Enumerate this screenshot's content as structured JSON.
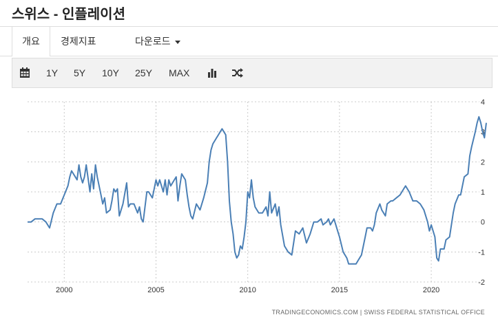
{
  "page_title": "스위스 - 인플레이션",
  "tabs": {
    "overview": "개요",
    "indicators": "경제지표",
    "download": "다운로드"
  },
  "toolbar": {
    "r1": "1Y",
    "r5": "5Y",
    "r10": "10Y",
    "r25": "25Y",
    "rmax": "MAX"
  },
  "source": "TRADINGECONOMICS.COM  |  SWISS FEDERAL STATISTICAL OFFICE",
  "colors": {
    "line": "#4a7fb5",
    "grid": "#c8c8c8"
  },
  "chart_data": {
    "type": "line",
    "x_ticks": [
      "2000",
      "2005",
      "2010",
      "2015",
      "2020"
    ],
    "y_ticks": [
      "4",
      "3",
      "2",
      "1",
      "0",
      "-1",
      "-2"
    ],
    "ylim": [
      -2,
      4
    ],
    "xlim": [
      1998.0,
      2023.0
    ],
    "grid": "horizontal dashed",
    "series": [
      {
        "points": [
          [
            1998.0,
            0.0
          ],
          [
            1998.2,
            0.0
          ],
          [
            1998.4,
            0.1
          ],
          [
            1998.8,
            0.1
          ],
          [
            1999.0,
            0.0
          ],
          [
            1999.2,
            -0.2
          ],
          [
            1999.4,
            0.3
          ],
          [
            1999.6,
            0.6
          ],
          [
            1999.8,
            0.6
          ],
          [
            2000.0,
            0.9
          ],
          [
            2000.2,
            1.2
          ],
          [
            2000.3,
            1.5
          ],
          [
            2000.4,
            1.7
          ],
          [
            2000.6,
            1.5
          ],
          [
            2000.7,
            1.4
          ],
          [
            2000.8,
            1.9
          ],
          [
            2000.9,
            1.5
          ],
          [
            2001.0,
            1.3
          ],
          [
            2001.1,
            1.5
          ],
          [
            2001.2,
            1.9
          ],
          [
            2001.4,
            1.0
          ],
          [
            2001.5,
            1.6
          ],
          [
            2001.6,
            1.1
          ],
          [
            2001.7,
            1.9
          ],
          [
            2001.8,
            1.5
          ],
          [
            2002.0,
            0.9
          ],
          [
            2002.1,
            0.6
          ],
          [
            2002.2,
            0.8
          ],
          [
            2002.3,
            0.3
          ],
          [
            2002.5,
            0.4
          ],
          [
            2002.6,
            0.7
          ],
          [
            2002.7,
            1.1
          ],
          [
            2002.8,
            1.0
          ],
          [
            2002.9,
            1.1
          ],
          [
            2003.0,
            0.2
          ],
          [
            2003.2,
            0.6
          ],
          [
            2003.4,
            1.3
          ],
          [
            2003.5,
            0.5
          ],
          [
            2003.6,
            0.6
          ],
          [
            2003.8,
            0.6
          ],
          [
            2004.0,
            0.3
          ],
          [
            2004.1,
            0.5
          ],
          [
            2004.2,
            0.1
          ],
          [
            2004.3,
            0.0
          ],
          [
            2004.5,
            1.0
          ],
          [
            2004.6,
            1.0
          ],
          [
            2004.8,
            0.8
          ],
          [
            2005.0,
            1.4
          ],
          [
            2005.1,
            1.2
          ],
          [
            2005.2,
            1.4
          ],
          [
            2005.4,
            1.0
          ],
          [
            2005.5,
            1.4
          ],
          [
            2005.6,
            0.9
          ],
          [
            2005.7,
            1.4
          ],
          [
            2005.8,
            1.2
          ],
          [
            2006.0,
            1.4
          ],
          [
            2006.1,
            1.5
          ],
          [
            2006.2,
            0.7
          ],
          [
            2006.3,
            1.2
          ],
          [
            2006.4,
            1.6
          ],
          [
            2006.6,
            1.4
          ],
          [
            2006.7,
            0.9
          ],
          [
            2006.8,
            0.5
          ],
          [
            2006.9,
            0.2
          ],
          [
            2007.0,
            0.1
          ],
          [
            2007.2,
            0.6
          ],
          [
            2007.4,
            0.4
          ],
          [
            2007.6,
            0.8
          ],
          [
            2007.8,
            1.3
          ],
          [
            2007.9,
            2.0
          ],
          [
            2008.0,
            2.4
          ],
          [
            2008.1,
            2.6
          ],
          [
            2008.3,
            2.8
          ],
          [
            2008.4,
            2.9
          ],
          [
            2008.5,
            3.0
          ],
          [
            2008.6,
            3.1
          ],
          [
            2008.8,
            2.9
          ],
          [
            2008.9,
            2.0
          ],
          [
            2009.0,
            0.7
          ],
          [
            2009.1,
            0.0
          ],
          [
            2009.2,
            -0.4
          ],
          [
            2009.3,
            -1.0
          ],
          [
            2009.4,
            -1.2
          ],
          [
            2009.5,
            -1.1
          ],
          [
            2009.6,
            -0.8
          ],
          [
            2009.7,
            -0.9
          ],
          [
            2009.8,
            -0.5
          ],
          [
            2009.9,
            0.0
          ],
          [
            2010.0,
            1.0
          ],
          [
            2010.1,
            0.8
          ],
          [
            2010.2,
            1.4
          ],
          [
            2010.3,
            0.8
          ],
          [
            2010.4,
            0.5
          ],
          [
            2010.6,
            0.3
          ],
          [
            2010.8,
            0.3
          ],
          [
            2011.0,
            0.5
          ],
          [
            2011.1,
            0.2
          ],
          [
            2011.2,
            1.0
          ],
          [
            2011.3,
            0.3
          ],
          [
            2011.5,
            0.6
          ],
          [
            2011.6,
            0.2
          ],
          [
            2011.7,
            0.5
          ],
          [
            2011.8,
            -0.1
          ],
          [
            2012.0,
            -0.8
          ],
          [
            2012.2,
            -1.0
          ],
          [
            2012.4,
            -1.1
          ],
          [
            2012.5,
            -0.7
          ],
          [
            2012.6,
            -0.3
          ],
          [
            2012.8,
            -0.4
          ],
          [
            2012.9,
            -0.3
          ],
          [
            2013.0,
            -0.2
          ],
          [
            2013.2,
            -0.7
          ],
          [
            2013.4,
            -0.4
          ],
          [
            2013.6,
            0.0
          ],
          [
            2013.8,
            0.0
          ],
          [
            2014.0,
            0.1
          ],
          [
            2014.1,
            -0.1
          ],
          [
            2014.3,
            0.0
          ],
          [
            2014.4,
            0.1
          ],
          [
            2014.5,
            -0.1
          ],
          [
            2014.7,
            0.1
          ],
          [
            2014.9,
            -0.3
          ],
          [
            2015.0,
            -0.5
          ],
          [
            2015.2,
            -1.0
          ],
          [
            2015.4,
            -1.2
          ],
          [
            2015.5,
            -1.4
          ],
          [
            2015.7,
            -1.4
          ],
          [
            2015.9,
            -1.4
          ],
          [
            2016.0,
            -1.3
          ],
          [
            2016.2,
            -1.1
          ],
          [
            2016.4,
            -0.5
          ],
          [
            2016.5,
            -0.2
          ],
          [
            2016.7,
            -0.2
          ],
          [
            2016.8,
            -0.3
          ],
          [
            2016.9,
            -0.1
          ],
          [
            2017.0,
            0.3
          ],
          [
            2017.2,
            0.6
          ],
          [
            2017.3,
            0.4
          ],
          [
            2017.5,
            0.2
          ],
          [
            2017.6,
            0.6
          ],
          [
            2017.8,
            0.7
          ],
          [
            2017.9,
            0.7
          ],
          [
            2018.1,
            0.8
          ],
          [
            2018.3,
            0.9
          ],
          [
            2018.5,
            1.1
          ],
          [
            2018.6,
            1.2
          ],
          [
            2018.8,
            1.0
          ],
          [
            2019.0,
            0.7
          ],
          [
            2019.2,
            0.7
          ],
          [
            2019.4,
            0.6
          ],
          [
            2019.6,
            0.4
          ],
          [
            2019.8,
            0.0
          ],
          [
            2019.9,
            -0.3
          ],
          [
            2020.0,
            -0.1
          ],
          [
            2020.2,
            -0.5
          ],
          [
            2020.3,
            -1.2
          ],
          [
            2020.4,
            -1.3
          ],
          [
            2020.5,
            -0.9
          ],
          [
            2020.7,
            -0.9
          ],
          [
            2020.8,
            -0.6
          ],
          [
            2021.0,
            -0.5
          ],
          [
            2021.2,
            0.3
          ],
          [
            2021.3,
            0.6
          ],
          [
            2021.5,
            0.9
          ],
          [
            2021.6,
            0.9
          ],
          [
            2021.8,
            1.5
          ],
          [
            2022.0,
            1.6
          ],
          [
            2022.1,
            2.2
          ],
          [
            2022.2,
            2.5
          ],
          [
            2022.4,
            3.0
          ],
          [
            2022.5,
            3.3
          ],
          [
            2022.6,
            3.5
          ],
          [
            2022.7,
            3.3
          ],
          [
            2022.8,
            3.0
          ],
          [
            2022.9,
            2.8
          ],
          [
            2023.0,
            3.3
          ]
        ]
      }
    ]
  }
}
